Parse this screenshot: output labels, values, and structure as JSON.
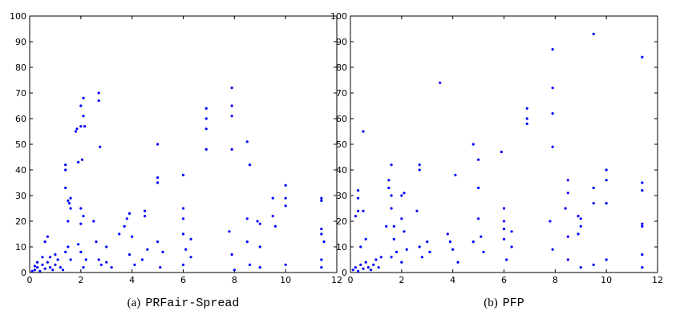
{
  "chart_data": [
    {
      "type": "scatter",
      "caption_label": "(a)",
      "caption_name": "PRFair-Spread",
      "color": "#0000ff",
      "xlim": [
        0,
        12
      ],
      "xticks": [
        0,
        2,
        4,
        6,
        8,
        10,
        12
      ],
      "ylim": [
        0,
        100
      ],
      "yticks": [
        0,
        10,
        20,
        30,
        40,
        50,
        60,
        70,
        80,
        90,
        100
      ],
      "x": [
        0.1,
        0.2,
        0.3,
        0.4,
        0.5,
        0.6,
        0.7,
        0.8,
        0.9,
        1.0,
        1.1,
        1.2,
        0.5,
        0.6,
        0.7,
        0.3,
        0.2,
        0.8,
        1.0,
        1.3,
        1.4,
        1.4,
        1.4,
        1.5,
        1.55,
        1.6,
        1.6,
        1.5,
        1.5,
        1.6,
        1.4,
        1.8,
        1.85,
        1.9,
        2.0,
        2.05,
        2.1,
        2.1,
        2.0,
        2.15,
        2.0,
        2.1,
        2.0,
        1.9,
        2.0,
        2.2,
        2.1,
        2.7,
        2.7,
        2.75,
        2.6,
        2.7,
        2.8,
        2.5,
        3.0,
        3.0,
        3.2,
        3.5,
        3.7,
        3.8,
        3.9,
        4.0,
        3.9,
        4.1,
        4.5,
        4.5,
        4.6,
        4.4,
        5.0,
        5.0,
        5.0,
        5.0,
        5.2,
        5.1,
        6.0,
        6.0,
        6.0,
        6.0,
        6.1,
        6.0,
        6.3,
        6.3,
        6.9,
        6.9,
        6.9,
        6.9,
        7.9,
        7.9,
        7.9,
        7.9,
        7.8,
        7.9,
        8.0,
        8.5,
        8.6,
        8.5,
        8.5,
        8.6,
        8.9,
        9.0,
        9.0,
        9.0,
        9.5,
        9.5,
        9.6,
        10.0,
        10.0,
        10.0,
        10.0,
        11.4,
        11.4,
        11.4,
        11.4,
        11.5,
        11.4,
        11.4
      ],
      "y": [
        0.5,
        1,
        2,
        0.5,
        3,
        1.5,
        4,
        2,
        1,
        3,
        5,
        2,
        6,
        12,
        14,
        4,
        2.5,
        6,
        7,
        1,
        42,
        40,
        33,
        28,
        27,
        29,
        25,
        20,
        10,
        5,
        8,
        55,
        56,
        43,
        65,
        44,
        68,
        61,
        57,
        57,
        25,
        22,
        19,
        11,
        8,
        5,
        2,
        70,
        67,
        49,
        12,
        5,
        3,
        20,
        10,
        4,
        2,
        15,
        18,
        21,
        23,
        14,
        7,
        3,
        24,
        22,
        9,
        5,
        50,
        37,
        35,
        12,
        8,
        2,
        38,
        25,
        21,
        15,
        9,
        3,
        13,
        6,
        64,
        60,
        56,
        48,
        72,
        65,
        61,
        48,
        16,
        7,
        1,
        51,
        42,
        21,
        12,
        3,
        20,
        19,
        10,
        2,
        29,
        22,
        18,
        34,
        29,
        26,
        3,
        29,
        28,
        17,
        15,
        12,
        5,
        2
      ]
    },
    {
      "type": "scatter",
      "caption_label": "(b)",
      "caption_name": "PFP",
      "color": "#0000ff",
      "xlim": [
        0,
        12
      ],
      "xticks": [
        0,
        2,
        4,
        6,
        8,
        10,
        12
      ],
      "ylim": [
        0,
        100
      ],
      "yticks": [
        0,
        10,
        20,
        30,
        40,
        50,
        60,
        70,
        80,
        90,
        100
      ],
      "x": [
        0.1,
        0.2,
        0.3,
        0.4,
        0.5,
        0.6,
        0.7,
        0.8,
        0.9,
        1.0,
        1.1,
        1.2,
        0.3,
        0.3,
        0.3,
        0.2,
        0.5,
        0.5,
        0.4,
        0.6,
        1.4,
        1.5,
        1.6,
        1.5,
        1.6,
        1.6,
        1.7,
        1.7,
        1.8,
        1.6,
        2.0,
        2.1,
        2.0,
        2.1,
        2.2,
        2.0,
        2.7,
        2.7,
        2.6,
        2.7,
        2.8,
        3.0,
        3.1,
        3.5,
        3.8,
        3.9,
        4.0,
        4.1,
        4.2,
        4.8,
        4.8,
        5.0,
        5.0,
        5.0,
        5.1,
        5.2,
        5.9,
        6.0,
        6.0,
        6.0,
        6.0,
        6.1,
        6.3,
        6.3,
        6.9,
        6.9,
        6.9,
        7.9,
        7.9,
        7.9,
        7.9,
        7.8,
        7.9,
        8.4,
        8.5,
        8.5,
        8.5,
        8.5,
        8.9,
        9.0,
        9.0,
        8.9,
        9.0,
        9.5,
        9.5,
        9.5,
        9.5,
        10.0,
        10.0,
        10.0,
        10.0,
        11.4,
        11.4,
        11.4,
        11.4,
        11.4,
        11.4,
        11.4
      ],
      "y": [
        1,
        2,
        0.5,
        3,
        1.5,
        4,
        2,
        1,
        3,
        5,
        2,
        6,
        32,
        29,
        24,
        22,
        55,
        24,
        10,
        13,
        18,
        36,
        42,
        33,
        30,
        25,
        18,
        13,
        8,
        6,
        30,
        31,
        21,
        16,
        9,
        4,
        42,
        40,
        24,
        10,
        6,
        12,
        8,
        74,
        15,
        12,
        9,
        38,
        4,
        50,
        12,
        44,
        33,
        21,
        14,
        8,
        47,
        25,
        20,
        17,
        13,
        5,
        16,
        10,
        64,
        60,
        58,
        87,
        72,
        62,
        49,
        20,
        9,
        25,
        36,
        31,
        14,
        5,
        22,
        21,
        18,
        15,
        2,
        93,
        33,
        27,
        3,
        40,
        36,
        27,
        5,
        84,
        35,
        32,
        19,
        18,
        7,
        2
      ]
    }
  ]
}
